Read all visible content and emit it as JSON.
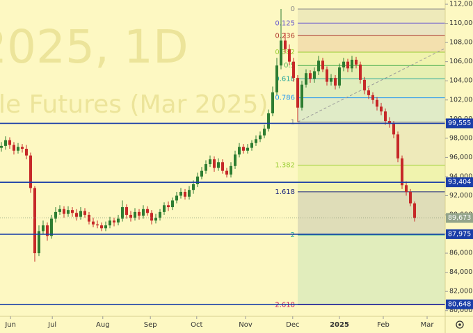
{
  "chart_data": {
    "type": "candlestick",
    "watermark": [
      "2025, 1D",
      "le Futures (Mar 2025)"
    ],
    "up_color": "#2e7d32",
    "down_color": "#c62828",
    "open": [
      97000,
      97200,
      97800,
      97300,
      96700,
      97100,
      96900,
      96200,
      92800,
      86000,
      88300,
      88900,
      87800,
      89600,
      90300,
      90600,
      90100,
      90500,
      90200,
      89800,
      90400,
      90000,
      89300,
      89000,
      88900,
      88600,
      88900,
      89400,
      89200,
      89600,
      90800,
      90000,
      89700,
      90300,
      89900,
      90600,
      90200,
      89400,
      89700,
      90300,
      91000,
      90800,
      91500,
      92000,
      92400,
      91900,
      92600,
      93200,
      94000,
      94600,
      95300,
      95800,
      94900,
      95500,
      94600,
      94200,
      95100,
      96300,
      97100,
      96700,
      97000,
      97500,
      97900,
      98300,
      99000,
      100600,
      102800,
      105600,
      108200,
      107300,
      106000,
      104300,
      101200,
      103600,
      104800,
      104200,
      105000,
      106100,
      105200,
      103900,
      104300,
      103500,
      105400,
      106000,
      105300,
      106200,
      105700,
      104100,
      103000,
      102500,
      102000,
      101300,
      100800,
      99800,
      99500,
      98400,
      95900,
      93100,
      92400,
      91200
    ],
    "high": [
      97600,
      98200,
      98100,
      97600,
      97500,
      97400,
      97300,
      96500,
      93000,
      88900,
      89400,
      89200,
      90000,
      90800,
      91000,
      90900,
      90900,
      90800,
      90600,
      90800,
      90700,
      90300,
      89700,
      89400,
      89200,
      89300,
      89800,
      89700,
      90000,
      91500,
      91100,
      90400,
      90700,
      90600,
      91000,
      90900,
      90500,
      90100,
      90600,
      91300,
      91400,
      91800,
      92400,
      92800,
      92700,
      93000,
      93600,
      94400,
      95000,
      95700,
      96200,
      96100,
      95900,
      95800,
      94900,
      95500,
      96700,
      97500,
      97400,
      97400,
      97800,
      98300,
      98700,
      99400,
      101000,
      103400,
      106400,
      111500,
      109000,
      107800,
      106400,
      104600,
      104000,
      105200,
      105100,
      105400,
      106600,
      106400,
      105500,
      104700,
      104600,
      105800,
      106400,
      106300,
      106600,
      106500,
      106000,
      104400,
      103300,
      102800,
      102300,
      101700,
      101100,
      100200,
      99800,
      98700,
      96200,
      93500,
      92700,
      91400
    ],
    "low": [
      96600,
      96800,
      96900,
      96300,
      96400,
      96500,
      95800,
      92300,
      85100,
      85700,
      88000,
      87300,
      87500,
      89200,
      90000,
      89700,
      89800,
      89800,
      89400,
      89500,
      89700,
      89000,
      88700,
      88600,
      88300,
      88300,
      88600,
      88800,
      88900,
      89300,
      89600,
      89300,
      89400,
      89500,
      89600,
      89900,
      89000,
      89100,
      89400,
      90000,
      90400,
      90500,
      91200,
      91700,
      91600,
      91600,
      92200,
      92900,
      93700,
      94300,
      95000,
      94500,
      94600,
      94300,
      93900,
      93900,
      94800,
      96000,
      96400,
      96400,
      96700,
      97200,
      97600,
      98000,
      98700,
      100300,
      102500,
      105200,
      106900,
      105600,
      103900,
      99700,
      100900,
      103300,
      103800,
      103800,
      104600,
      104900,
      103500,
      103500,
      103100,
      103200,
      105000,
      104900,
      104900,
      105300,
      103700,
      102600,
      102100,
      101600,
      100900,
      100400,
      99400,
      99100,
      98000,
      95500,
      92700,
      92000,
      90900,
      89300
    ],
    "close": [
      97200,
      97800,
      97300,
      96700,
      97100,
      96900,
      96200,
      92800,
      86000,
      88300,
      88900,
      87800,
      89600,
      90300,
      90600,
      90100,
      90500,
      90200,
      89800,
      90400,
      90000,
      89300,
      89000,
      88900,
      88600,
      88900,
      89400,
      89200,
      89600,
      90800,
      90000,
      89700,
      90300,
      89900,
      90600,
      90200,
      89400,
      89700,
      90300,
      91000,
      90800,
      91500,
      92000,
      92400,
      91900,
      92600,
      93200,
      94000,
      94600,
      95300,
      95800,
      94900,
      95500,
      94600,
      94200,
      95100,
      96300,
      97100,
      96700,
      97000,
      97500,
      97900,
      98300,
      99000,
      100600,
      102800,
      105600,
      108200,
      107300,
      106000,
      104300,
      101200,
      103600,
      104800,
      104200,
      105000,
      106100,
      105200,
      103900,
      104300,
      103500,
      105400,
      106000,
      105300,
      106200,
      105700,
      104100,
      103000,
      102500,
      102000,
      101300,
      100800,
      99800,
      99500,
      98400,
      95900,
      93100,
      92400,
      91200,
      89673
    ],
    "xlim": [
      -0.33,
      106.33
    ],
    "xticks": [
      {
        "value": 2.2,
        "label": "Jun"
      },
      {
        "value": 12.2,
        "label": "Jul"
      },
      {
        "value": 24.3,
        "label": "Aug"
      },
      {
        "value": 35.7,
        "label": "Sep"
      },
      {
        "value": 46.8,
        "label": "Oct"
      },
      {
        "value": 58.5,
        "label": "Nov"
      },
      {
        "value": 69.8,
        "label": "Dec"
      },
      {
        "value": 81,
        "label": "2025"
      },
      {
        "value": 91.5,
        "label": "Feb"
      },
      {
        "value": 102,
        "label": "Mar"
      }
    ],
    "ylim": [
      79400,
      112440
    ],
    "yticks": [
      {
        "value": 80000,
        "label": "80,000"
      },
      {
        "value": 82000,
        "label": "82,000"
      },
      {
        "value": 84000,
        "label": "84,000"
      },
      {
        "value": 86000,
        "label": "86,000"
      },
      {
        "value": 88000,
        "label": "88,000"
      },
      {
        "value": 90000,
        "label": "90,000"
      },
      {
        "value": 92000,
        "label": "92,000"
      },
      {
        "value": 94000,
        "label": "94,000"
      },
      {
        "value": 96000,
        "label": "96,000"
      },
      {
        "value": 98000,
        "label": "98,000"
      },
      {
        "value": 100000,
        "label": "100,000"
      },
      {
        "value": 102000,
        "label": "102,000"
      },
      {
        "value": 104000,
        "label": "104,000"
      },
      {
        "value": 106000,
        "label": "106,000"
      },
      {
        "value": 108000,
        "label": "108,000"
      },
      {
        "value": 110000,
        "label": "110,000"
      },
      {
        "value": 112000,
        "label": "112,000"
      }
    ],
    "levels": [
      {
        "value": 99555,
        "label": "99,555"
      },
      {
        "value": 93404,
        "label": "93,404"
      },
      {
        "value": 87975,
        "label": "87,975"
      },
      {
        "value": 80648,
        "label": "80,648"
      }
    ],
    "level_color": "#1a3ea8",
    "last_price": {
      "value": 89673,
      "label": "89,673"
    },
    "fib": {
      "high": 111500,
      "low": 99700,
      "start": 71,
      "levels": [
        0,
        0.125,
        0.236,
        0.382,
        0.5,
        0.618,
        0.786,
        1,
        1.382,
        1.618,
        2,
        2.618
      ],
      "colors": [
        "#888888",
        "#6a5acd",
        "#b03a2e",
        "#9acd32",
        "#4caf50",
        "#26a69a",
        "#2196f3",
        "#888888",
        "#9acd32",
        "#1a237e",
        "#26a69a",
        "#c2185b"
      ]
    },
    "trendline": {
      "x": [
        71,
        106.33
      ],
      "y": [
        99700,
        107400
      ]
    }
  }
}
